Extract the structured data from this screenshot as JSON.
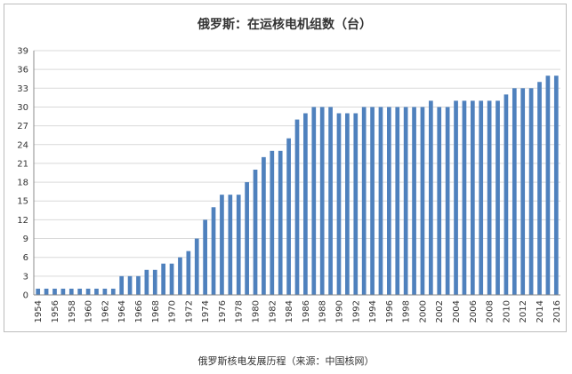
{
  "chart_data": {
    "type": "bar",
    "title": "俄罗斯：在运核电机组数（台）",
    "xlabel": "",
    "ylabel": "",
    "categories": [
      "1954",
      "1955",
      "1956",
      "1957",
      "1958",
      "1959",
      "1960",
      "1961",
      "1962",
      "1963",
      "1964",
      "1965",
      "1966",
      "1967",
      "1968",
      "1969",
      "1970",
      "1971",
      "1972",
      "1973",
      "1974",
      "1975",
      "1976",
      "1977",
      "1978",
      "1979",
      "1980",
      "1981",
      "1982",
      "1983",
      "1984",
      "1985",
      "1986",
      "1987",
      "1988",
      "1989",
      "1990",
      "1991",
      "1992",
      "1993",
      "1994",
      "1995",
      "1996",
      "1997",
      "1998",
      "1999",
      "2000",
      "2001",
      "2002",
      "2003",
      "2004",
      "2005",
      "2006",
      "2007",
      "2008",
      "2009",
      "2010",
      "2011",
      "2012",
      "2013",
      "2014",
      "2015",
      "2016"
    ],
    "x_tick_labels": [
      "1954",
      "1956",
      "1958",
      "1960",
      "1962",
      "1964",
      "1966",
      "1968",
      "1970",
      "1972",
      "1974",
      "1976",
      "1978",
      "1980",
      "1982",
      "1984",
      "1986",
      "1988",
      "1990",
      "1992",
      "1994",
      "1996",
      "1998",
      "2000",
      "2002",
      "2004",
      "2006",
      "2008",
      "2010",
      "2012",
      "2014",
      "2016"
    ],
    "values": [
      1,
      1,
      1,
      1,
      1,
      1,
      1,
      1,
      1,
      1,
      3,
      3,
      3,
      4,
      4,
      5,
      5,
      6,
      7,
      9,
      12,
      14,
      16,
      16,
      16,
      18,
      20,
      22,
      23,
      23,
      25,
      28,
      29,
      30,
      30,
      30,
      29,
      29,
      29,
      30,
      30,
      30,
      30,
      30,
      30,
      30,
      30,
      31,
      30,
      30,
      31,
      31,
      31,
      31,
      31,
      31,
      32,
      33,
      33,
      33,
      34,
      35,
      35
    ],
    "ylim": [
      0,
      39
    ],
    "y_ticks": [
      0,
      3,
      6,
      9,
      12,
      15,
      18,
      21,
      24,
      27,
      30,
      33,
      36,
      39
    ],
    "grid": true,
    "bar_color": "#4f81bd",
    "grid_color": "#d9d9d9"
  },
  "caption": "俄罗斯核电发展历程（来源：中国核网）"
}
